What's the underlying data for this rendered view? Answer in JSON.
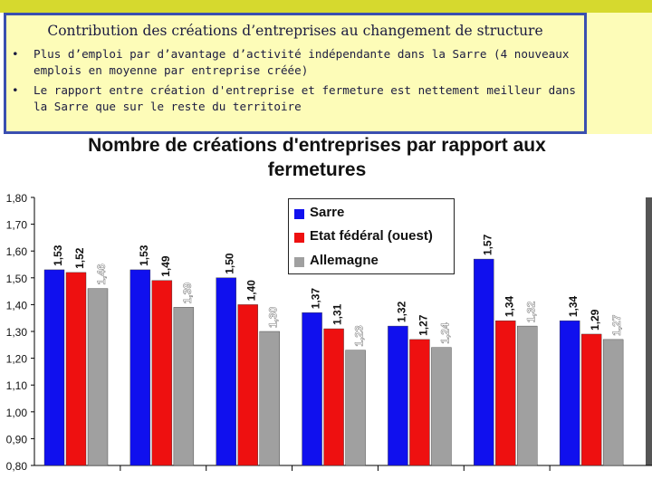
{
  "header": {
    "title": "Contribution des créations d’entreprises au changement de structure",
    "bullets": [
      "Plus d’emploi par d’avantage d’activité indépendante dans la Sarre (4 nouveaux emplois en moyenne par entreprise créée)",
      "Le rapport entre création d'entreprise et fermeture est nettement meilleur dans la Sarre que sur le reste du territoire"
    ],
    "bullet_symbol": "•"
  },
  "chart_data": {
    "type": "bar",
    "title": "Nombre de créations d'entreprises par rapport aux fermetures",
    "ylim": [
      0.8,
      1.8
    ],
    "yticks": [
      "0,80",
      "0,90",
      "1,00",
      "1,10",
      "1,20",
      "1,30",
      "1,40",
      "1,50",
      "1,60",
      "1,70",
      "1,80"
    ],
    "grid": false,
    "legend_position": "top-center",
    "series": [
      {
        "name": "Sarre",
        "color": "#1010ee",
        "values": [
          1.53,
          1.53,
          1.5,
          1.37,
          1.32,
          1.57,
          1.34
        ],
        "labels": [
          "1,53",
          "1,53",
          "1,50",
          "1,37",
          "1,32",
          "1,57",
          "1,34"
        ]
      },
      {
        "name": "Etat fédéral (ouest)",
        "color": "#ee1010",
        "values": [
          1.52,
          1.49,
          1.4,
          1.31,
          1.27,
          1.34,
          1.29
        ],
        "labels": [
          "1,52",
          "1,49",
          "1,40",
          "1,31",
          "1,27",
          "1,34",
          "1,29"
        ]
      },
      {
        "name": "Allemagne",
        "color": "#a0a0a0",
        "values": [
          1.46,
          1.39,
          1.3,
          1.23,
          1.24,
          1.32,
          1.27
        ],
        "labels": [
          "1,46",
          "1,39",
          "1,30",
          "1,23",
          "1,24",
          "1,32",
          "1,27"
        ]
      }
    ]
  }
}
